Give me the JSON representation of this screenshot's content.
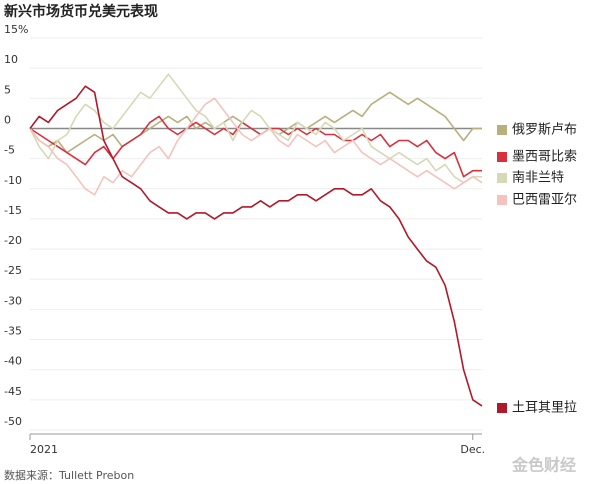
{
  "chart_data": {
    "type": "line",
    "title": "新兴市场货币兑美元表现",
    "source": "数据来源：Tullett Prebon",
    "watermark": "金色财经",
    "categories": [
      "2021",
      null,
      null,
      null,
      null,
      null,
      null,
      null,
      null,
      null,
      null,
      null,
      null,
      null,
      null,
      null,
      null,
      null,
      null,
      null,
      null,
      null,
      null,
      null,
      null,
      null,
      null,
      null,
      null,
      null,
      null,
      null,
      null,
      null,
      null,
      null,
      null,
      null,
      null,
      null,
      null,
      null,
      null,
      null,
      null,
      null,
      null,
      null,
      "Dec.",
      null
    ],
    "ylim": [
      -50,
      15
    ],
    "yticks": [
      {
        "value": 15,
        "label": "15%"
      },
      10,
      5,
      0,
      -5,
      -10,
      -15,
      -20,
      -25,
      -30,
      -35,
      -40,
      -45,
      -50
    ],
    "grid": true,
    "series": [
      {
        "name": "俄罗斯卢布",
        "color": "#b8b07c",
        "values": [
          0,
          -2,
          -3,
          -2,
          -4,
          -3,
          -2,
          -1,
          -2,
          -1,
          -3,
          -2,
          -1,
          0,
          1,
          2,
          1,
          2,
          0,
          1,
          0,
          1,
          2,
          1,
          0,
          -1,
          0,
          -1,
          0,
          1,
          0,
          1,
          2,
          1,
          2,
          3,
          2,
          4,
          5,
          6,
          5,
          4,
          5,
          4,
          3,
          2,
          0,
          -2,
          0,
          0
        ]
      },
      {
        "name": "墨西哥比索",
        "color": "#d9303e",
        "values": [
          0,
          -1,
          -2,
          -3,
          -4,
          -5,
          -6,
          -4,
          -3,
          -5,
          -3,
          -2,
          -1,
          1,
          2,
          0,
          -1,
          0,
          1,
          0,
          -1,
          0,
          -1,
          1,
          0,
          -1,
          0,
          0,
          -1,
          0,
          -1,
          0,
          -1,
          -1,
          -2,
          -2,
          -1,
          -2,
          -1,
          -3,
          -2,
          -2,
          -3,
          -2,
          -4,
          -5,
          -4,
          -8,
          -7,
          -7
        ]
      },
      {
        "name": "南非兰特",
        "color": "#d6d9b5",
        "values": [
          0,
          -3,
          -5,
          -2,
          -1,
          2,
          4,
          3,
          1,
          0,
          2,
          4,
          6,
          5,
          7,
          9,
          7,
          5,
          3,
          2,
          0,
          1,
          -2,
          1,
          3,
          2,
          0,
          -1,
          -2,
          1,
          0,
          -1,
          1,
          0,
          -2,
          -1,
          0,
          -3,
          -4,
          -5,
          -4,
          -5,
          -6,
          -5,
          -7,
          -6,
          -8,
          -9,
          -8,
          -8
        ]
      },
      {
        "name": "巴西雷亚尔",
        "color": "#f4c3bd",
        "values": [
          0,
          -2,
          -3,
          -5,
          -6,
          -8,
          -10,
          -11,
          -8,
          -9,
          -7,
          -8,
          -6,
          -4,
          -3,
          -5,
          -2,
          0,
          2,
          4,
          5,
          3,
          1,
          -1,
          -2,
          -1,
          0,
          -2,
          -3,
          -1,
          -2,
          -3,
          -2,
          -4,
          -3,
          -2,
          -4,
          -5,
          -6,
          -5,
          -6,
          -7,
          -8,
          -7,
          -8,
          -9,
          -10,
          -9,
          -8,
          -9
        ]
      },
      {
        "name": "土耳其里拉",
        "color": "#b0182b",
        "values": [
          0,
          2,
          1,
          3,
          4,
          5,
          7,
          6,
          -2,
          -5,
          -8,
          -9,
          -10,
          -12,
          -13,
          -14,
          -14,
          -15,
          -14,
          -14,
          -15,
          -14,
          -14,
          -13,
          -13,
          -12,
          -13,
          -12,
          -12,
          -11,
          -11,
          -12,
          -11,
          -10,
          -10,
          -11,
          -11,
          -10,
          -12,
          -13,
          -15,
          -18,
          -20,
          -22,
          -23,
          -26,
          -32,
          -40,
          -45,
          -46
        ]
      }
    ]
  }
}
